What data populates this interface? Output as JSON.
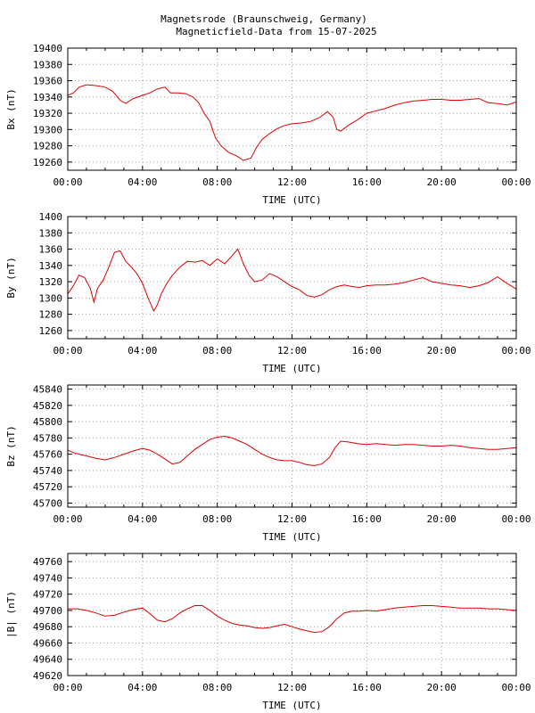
{
  "title": "Magnetsrode (Braunschweig, Germany)",
  "subtitle": "Magneticfield-Data from 15-07-2025",
  "colors": {
    "trace": "#dd0000",
    "grid": "#a0a0a0",
    "frame": "#000000"
  },
  "chart_data": [
    {
      "type": "line",
      "ylabel": "Bx (nT)",
      "xlabel": "TIME (UTC)",
      "xlim": [
        0,
        24
      ],
      "ylim": [
        19250,
        19400
      ],
      "yticks": [
        19260,
        19280,
        19300,
        19320,
        19340,
        19360,
        19380,
        19400
      ],
      "xticklabels": [
        "00:00",
        "04:00",
        "08:00",
        "12:00",
        "16:00",
        "20:00",
        "00:00"
      ],
      "grid": true,
      "series": [
        {
          "x": [
            0,
            0.3,
            0.6,
            1,
            1.5,
            2,
            2.4,
            2.8,
            3.1,
            3.5,
            4,
            4.4,
            4.8,
            5.2,
            5.5,
            5.9,
            6.3,
            6.7,
            7,
            7.3,
            7.6,
            7.9,
            8.2,
            8.6,
            9,
            9.4,
            9.8,
            10.1,
            10.4,
            10.8,
            11.2,
            11.6,
            12,
            12.5,
            13,
            13.5,
            13.9,
            14.2,
            14.4,
            14.6,
            15,
            15.5,
            16,
            16.5,
            17,
            17.5,
            18,
            18.5,
            19,
            19.5,
            20,
            20.5,
            21,
            21.5,
            22,
            22.5,
            23,
            23.5,
            24
          ],
          "values": [
            19342,
            19345,
            19352,
            19355,
            19354,
            19352,
            19347,
            19336,
            19332,
            19338,
            19342,
            19345,
            19350,
            19352,
            19345,
            19345,
            19344,
            19340,
            19333,
            19320,
            19310,
            19290,
            19280,
            19272,
            19268,
            19262,
            19265,
            19278,
            19288,
            19295,
            19301,
            19305,
            19307,
            19308,
            19310,
            19315,
            19322,
            19315,
            19300,
            19298,
            19305,
            19312,
            19320,
            19323,
            19326,
            19330,
            19333,
            19335,
            19336,
            19337,
            19337,
            19336,
            19336,
            19337,
            19338,
            19333,
            19332,
            19330,
            19334
          ]
        }
      ]
    },
    {
      "type": "line",
      "ylabel": "By (nT)",
      "xlabel": "TIME (UTC)",
      "xlim": [
        0,
        24
      ],
      "ylim": [
        1250,
        1400
      ],
      "yticks": [
        1260,
        1280,
        1300,
        1320,
        1340,
        1360,
        1380,
        1400
      ],
      "xticklabels": [
        "00:00",
        "04:00",
        "08:00",
        "12:00",
        "16:00",
        "20:00",
        "00:00"
      ],
      "grid": true,
      "series": [
        {
          "x": [
            0,
            0.3,
            0.6,
            0.9,
            1.2,
            1.4,
            1.6,
            1.9,
            2.2,
            2.5,
            2.8,
            3.1,
            3.4,
            3.7,
            4,
            4.3,
            4.6,
            4.8,
            5,
            5.3,
            5.6,
            6,
            6.4,
            6.8,
            7.2,
            7.6,
            8,
            8.4,
            8.8,
            9.1,
            9.4,
            9.7,
            10,
            10.4,
            10.8,
            11.2,
            11.6,
            12,
            12.4,
            12.8,
            13.2,
            13.6,
            14,
            14.4,
            14.8,
            15.2,
            15.6,
            16,
            16.5,
            17,
            17.5,
            18,
            18.5,
            19,
            19.5,
            20,
            20.5,
            21,
            21.5,
            22,
            22.5,
            23,
            23.5,
            24
          ],
          "values": [
            1305,
            1315,
            1328,
            1325,
            1312,
            1295,
            1312,
            1322,
            1338,
            1356,
            1358,
            1345,
            1338,
            1330,
            1318,
            1300,
            1284,
            1292,
            1305,
            1318,
            1328,
            1338,
            1345,
            1344,
            1346,
            1340,
            1348,
            1342,
            1352,
            1360,
            1342,
            1328,
            1320,
            1322,
            1330,
            1326,
            1320,
            1314,
            1310,
            1303,
            1301,
            1304,
            1310,
            1314,
            1316,
            1314,
            1313,
            1315,
            1316,
            1316,
            1317,
            1319,
            1322,
            1325,
            1320,
            1318,
            1316,
            1315,
            1313,
            1315,
            1319,
            1326,
            1318,
            1311
          ]
        }
      ]
    },
    {
      "type": "line",
      "ylabel": "Bz (nT)",
      "xlabel": "TIME (UTC)",
      "xlim": [
        0,
        24
      ],
      "ylim": [
        45695,
        45845
      ],
      "yticks": [
        45700,
        45720,
        45740,
        45760,
        45780,
        45800,
        45820,
        45840
      ],
      "xticklabels": [
        "00:00",
        "04:00",
        "08:00",
        "12:00",
        "16:00",
        "20:00",
        "00:00"
      ],
      "grid": true,
      "series": [
        {
          "x": [
            0,
            0.3,
            0.6,
            1,
            1.5,
            2,
            2.5,
            3,
            3.5,
            4,
            4.4,
            4.8,
            5.2,
            5.6,
            6,
            6.4,
            6.8,
            7.2,
            7.6,
            8,
            8.4,
            8.8,
            9.2,
            9.6,
            10,
            10.4,
            10.8,
            11.2,
            11.6,
            12,
            12.4,
            12.8,
            13.2,
            13.6,
            14,
            14.3,
            14.6,
            15,
            15.5,
            16,
            16.5,
            17,
            17.5,
            18,
            18.5,
            19,
            19.5,
            20,
            20.5,
            21,
            21.5,
            22,
            22.5,
            23,
            23.5,
            24
          ],
          "values": [
            45765,
            45762,
            45760,
            45758,
            45755,
            45753,
            45756,
            45760,
            45764,
            45767,
            45765,
            45760,
            45754,
            45748,
            45750,
            45758,
            45766,
            45772,
            45778,
            45781,
            45782,
            45780,
            45776,
            45772,
            45766,
            45760,
            45756,
            45753,
            45752,
            45752,
            45750,
            45747,
            45746,
            45748,
            45756,
            45768,
            45776,
            45775,
            45773,
            45772,
            45773,
            45772,
            45771,
            45772,
            45772,
            45771,
            45770,
            45770,
            45771,
            45770,
            45768,
            45767,
            45766,
            45766,
            45767,
            45768
          ]
        }
      ]
    },
    {
      "type": "line",
      "ylabel": "|B| (nT)",
      "xlabel": "TIME (UTC)",
      "xlim": [
        0,
        24
      ],
      "ylim": [
        49620,
        49770
      ],
      "yticks": [
        49620,
        49640,
        49660,
        49680,
        49700,
        49720,
        49740,
        49760
      ],
      "xticklabels": [
        "00:00",
        "04:00",
        "08:00",
        "12:00",
        "16:00",
        "20:00",
        "00:00"
      ],
      "grid": true,
      "series": [
        {
          "x": [
            0,
            0.5,
            1,
            1.5,
            2,
            2.5,
            3,
            3.5,
            4,
            4.4,
            4.8,
            5.2,
            5.6,
            6,
            6.4,
            6.8,
            7.2,
            7.6,
            8,
            8.4,
            8.8,
            9.2,
            9.6,
            10,
            10.4,
            10.8,
            11.2,
            11.6,
            12,
            12.4,
            12.8,
            13.2,
            13.6,
            14,
            14.4,
            14.8,
            15.2,
            15.6,
            16,
            16.5,
            17,
            17.5,
            18,
            18.5,
            19,
            19.5,
            20,
            20.5,
            21,
            21.5,
            22,
            22.5,
            23,
            23.5,
            24
          ],
          "values": [
            49702,
            49702,
            49700,
            49697,
            49693,
            49694,
            49698,
            49701,
            49703,
            49696,
            49688,
            49686,
            49690,
            49697,
            49702,
            49706,
            49706,
            49700,
            49693,
            49688,
            49684,
            49682,
            49681,
            49679,
            49678,
            49679,
            49681,
            49683,
            49680,
            49677,
            49675,
            49673,
            49674,
            49680,
            49690,
            49697,
            49699,
            49699,
            49700,
            49699,
            49701,
            49703,
            49704,
            49705,
            49706,
            49706,
            49705,
            49704,
            49703,
            49703,
            49703,
            49702,
            49702,
            49701,
            49700
          ]
        }
      ]
    }
  ]
}
